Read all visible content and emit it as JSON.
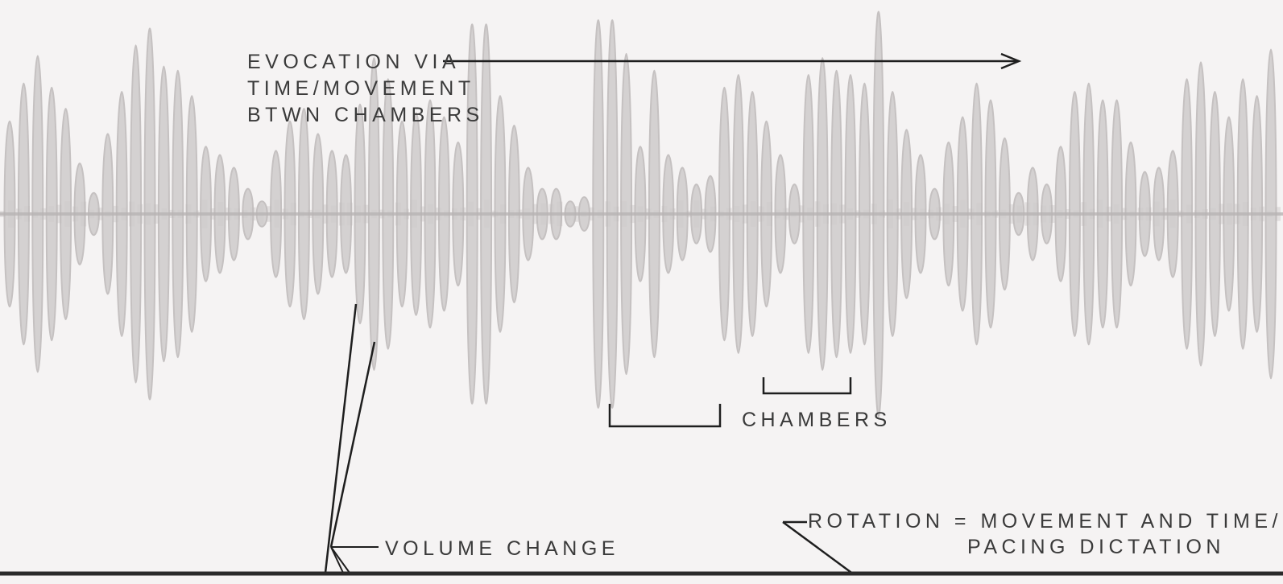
{
  "annotations": {
    "evocation_lines": [
      "EVOCATION VIA",
      "TIME/MOVEMENT",
      "BTWN CHAMBERS"
    ],
    "chambers": "CHAMBERS",
    "volume_change": "VOLUME CHANGE",
    "rotation_lines": [
      "ROTATION = MOVEMENT AND TIME/",
      "PACING DICTATION"
    ]
  },
  "waveform": {
    "color": "#cfcccc",
    "outline_color": "#bdb9b9",
    "amplitudes": [
      0.44,
      0.62,
      0.75,
      0.6,
      0.5,
      0.24,
      0.1,
      0.38,
      0.58,
      0.8,
      0.88,
      0.7,
      0.68,
      0.56,
      0.32,
      0.28,
      0.22,
      0.12,
      0.06,
      0.3,
      0.44,
      0.5,
      0.38,
      0.3,
      0.28,
      0.52,
      0.74,
      0.64,
      0.44,
      0.48,
      0.54,
      0.46,
      0.34,
      0.9,
      0.9,
      0.56,
      0.42,
      0.22,
      0.12,
      0.12,
      0.06,
      0.08,
      0.92,
      0.92,
      0.76,
      0.32,
      0.68,
      0.28,
      0.22,
      0.14,
      0.18,
      0.6,
      0.66,
      0.58,
      0.44,
      0.28,
      0.14,
      0.66,
      0.74,
      0.68,
      0.66,
      0.62,
      0.96,
      0.58,
      0.4,
      0.28,
      0.12,
      0.34,
      0.46,
      0.62,
      0.54,
      0.36,
      0.1,
      0.22,
      0.14,
      0.32,
      0.58,
      0.62,
      0.54,
      0.54,
      0.34,
      0.2,
      0.22,
      0.3,
      0.64,
      0.72,
      0.58,
      0.46,
      0.64,
      0.56,
      0.78
    ]
  },
  "colors": {
    "background": "#f5f3f3",
    "ink": "#1e1e1e",
    "text": "#3a3a3a"
  }
}
